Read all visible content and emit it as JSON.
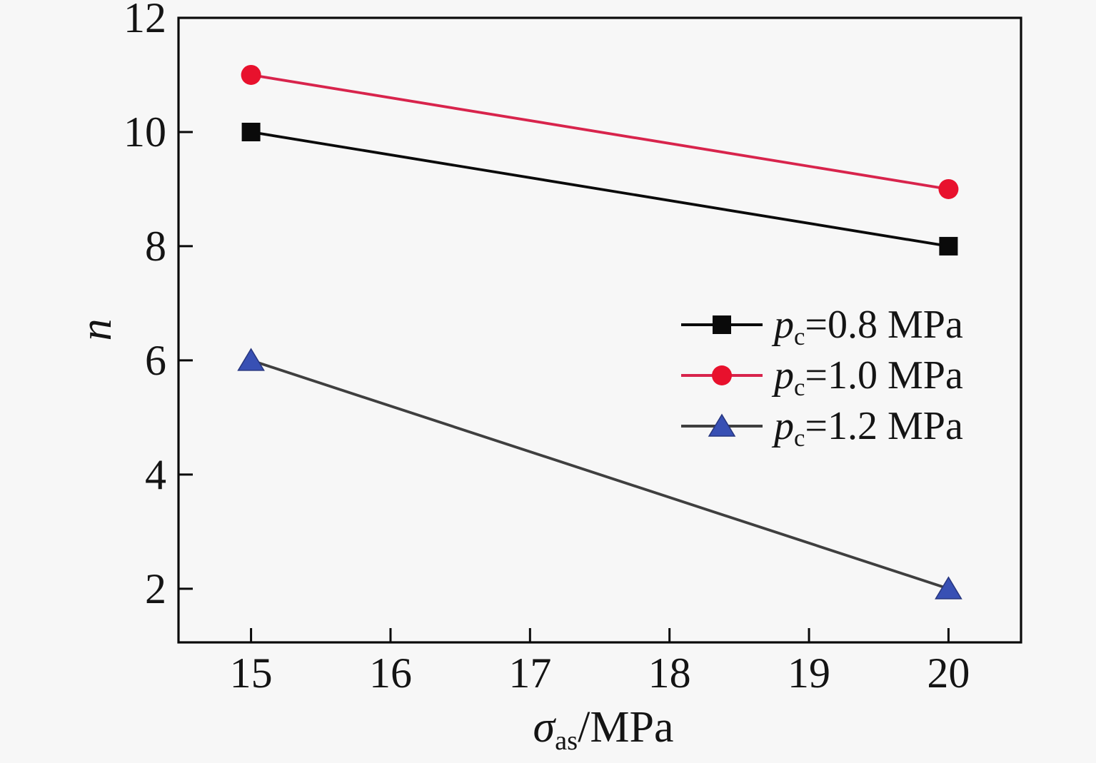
{
  "chart_data": {
    "type": "line",
    "title": "",
    "x": [
      15,
      20
    ],
    "x_ticks": [
      15,
      16,
      17,
      18,
      19,
      20
    ],
    "y_ticks": [
      2,
      4,
      6,
      8,
      10,
      12
    ],
    "xlim": [
      14.48,
      20.52
    ],
    "ylim": [
      1.06,
      12
    ],
    "grid": false,
    "legend_position": "center-right",
    "xlabel": {
      "sym": "σ",
      "sub": "as",
      "rest": "/MPa"
    },
    "ylabel": "n",
    "series": [
      {
        "name": "pc=0.8 MPa",
        "label_sym": "p",
        "label_sub": "c",
        "label_rest": "=0.8 MPa",
        "values": [
          10,
          8
        ],
        "line_color": "#0a0a0a",
        "marker": "square",
        "marker_color": "#0a0a0a"
      },
      {
        "name": "pc=1.0 MPa",
        "label_sym": "p",
        "label_sub": "c",
        "label_rest": "=1.0 MPa",
        "values": [
          11,
          9
        ],
        "line_color": "#d8244c",
        "marker": "circle",
        "marker_color": "#e8112d"
      },
      {
        "name": "pc=1.2 MPa",
        "label_sym": "p",
        "label_sub": "c",
        "label_rest": "=1.2 MPa",
        "values": [
          6,
          2
        ],
        "line_color": "#3f3f3f",
        "marker": "triangle",
        "marker_color": "#3850b4"
      }
    ],
    "colors": {
      "frame": "#0a0a0a",
      "background": "#f7f7f7",
      "text": "#141414"
    }
  }
}
